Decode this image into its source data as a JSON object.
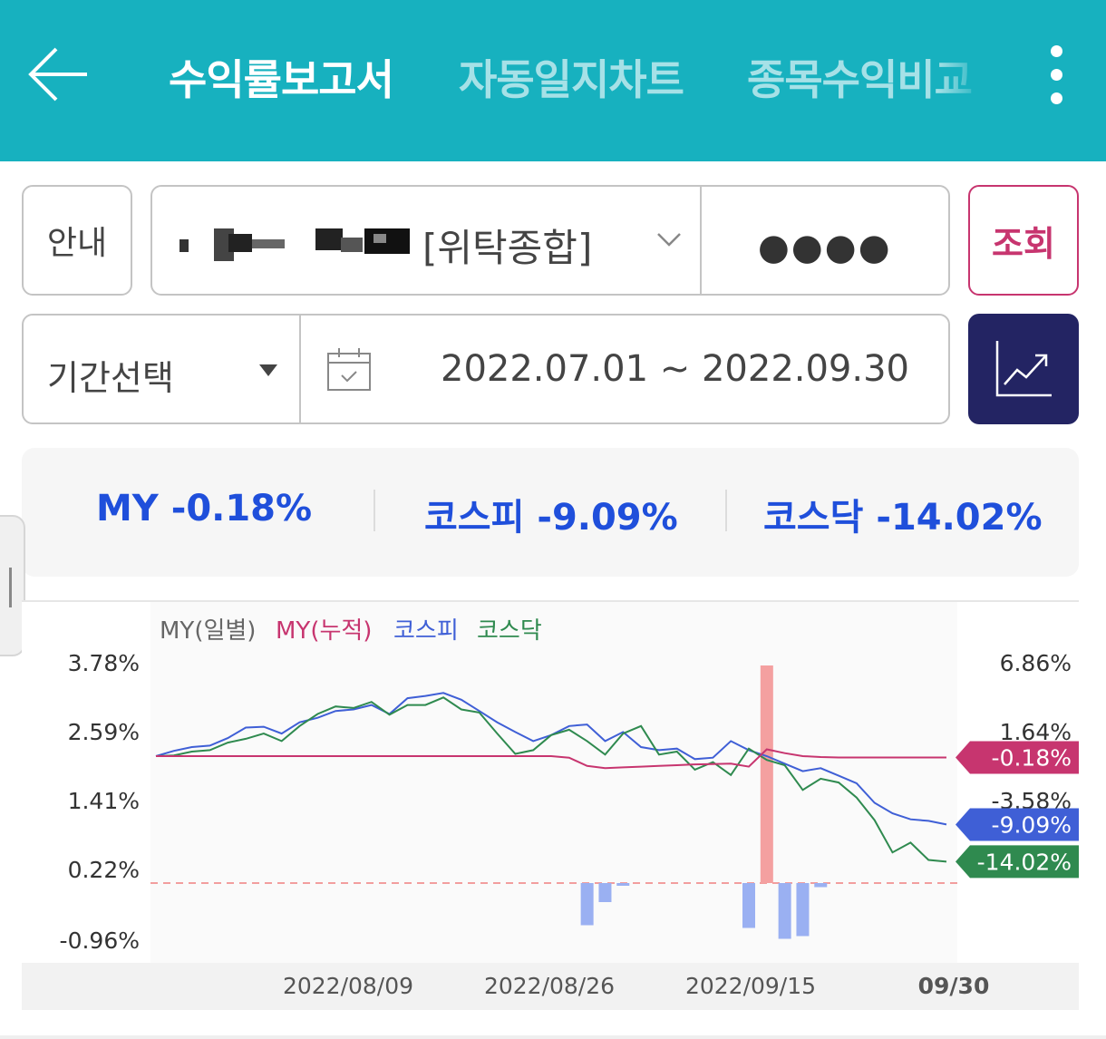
{
  "header": {
    "tabs": [
      {
        "label": "수익률보고서",
        "active": true
      },
      {
        "label": "자동일지차트",
        "active": false
      },
      {
        "label": "종목수익비교",
        "active": false
      }
    ]
  },
  "account": {
    "guide_label": "안내",
    "account_type": "[위탁종합]",
    "password_mask": "●●●●",
    "query_label": "조회"
  },
  "period": {
    "label": "기간선택",
    "range": "2022.07.01 ~ 2022.09.30"
  },
  "summary": [
    {
      "label": "MY",
      "value": "-0.18%"
    },
    {
      "label": "코스피",
      "value": "-9.09%"
    },
    {
      "label": "코스닥",
      "value": "-14.02%"
    }
  ],
  "colors": {
    "header": "#17b1bf",
    "my_daily": "#777777",
    "my_cum": "#c7356f",
    "kospi": "#3f5fd6",
    "kosdaq": "#2f8a4f",
    "summary_text": "#1f4fdb",
    "chart_button": "#232463"
  },
  "chart_data": {
    "type": "line",
    "legend": [
      {
        "name": "MY(일별)",
        "color": "#666666"
      },
      {
        "name": "MY(누적)",
        "color": "#c7356f"
      },
      {
        "name": "코스피",
        "color": "#3f5fd6"
      },
      {
        "name": "코스닥",
        "color": "#2f8a4f"
      }
    ],
    "left_ticks": [
      "3.78%",
      "2.59%",
      "1.41%",
      "0.22%",
      "-0.96%"
    ],
    "right_ticks": [
      "6.86%",
      "1.64%",
      "-3.58%"
    ],
    "x_ticks": [
      "2022/08/09",
      "2022/08/26",
      "2022/09/15",
      "09/30"
    ],
    "end_labels": [
      {
        "series": "MY(누적)",
        "value": "-0.18%",
        "color": "#c7356f"
      },
      {
        "series": "코스피",
        "value": "-9.09%",
        "color": "#3f5fd6"
      },
      {
        "series": "코스닥",
        "value": "-14.02%",
        "color": "#2f8a4f"
      }
    ],
    "series": [
      {
        "name": "코스피",
        "values": [
          0.0,
          0.7,
          1.2,
          1.4,
          2.4,
          3.8,
          3.9,
          3.0,
          4.5,
          5.1,
          6.0,
          6.2,
          6.8,
          5.6,
          7.7,
          8.0,
          8.4,
          7.5,
          6.0,
          4.5,
          3.2,
          2.0,
          2.8,
          4.0,
          4.2,
          2.0,
          3.2,
          1.2,
          0.8,
          1.0,
          -0.4,
          -0.2,
          2.0,
          0.8,
          0.0,
          -1.0,
          -2.0,
          -1.6,
          -2.6,
          -3.6,
          -6.2,
          -7.6,
          -8.4,
          -8.6,
          -9.09
        ]
      },
      {
        "name": "코스닥",
        "values": [
          0.0,
          0.1,
          0.6,
          0.8,
          1.8,
          2.3,
          3.0,
          2.0,
          4.0,
          5.6,
          6.6,
          6.4,
          7.2,
          5.5,
          6.8,
          6.8,
          7.8,
          6.2,
          5.8,
          3.0,
          0.3,
          0.8,
          2.8,
          3.5,
          2.0,
          0.2,
          3.0,
          4.0,
          0.2,
          0.6,
          -1.8,
          -0.8,
          -2.5,
          1.0,
          -0.5,
          -1.2,
          -4.5,
          -3.0,
          -3.5,
          -5.5,
          -8.5,
          -12.8,
          -11.5,
          -13.8,
          -14.02
        ]
      },
      {
        "name": "MY(누적)",
        "values": [
          0.0,
          0.0,
          0.0,
          0.0,
          0.0,
          0.0,
          0.0,
          0.0,
          0.0,
          0.0,
          0.0,
          0.0,
          0.0,
          0.0,
          0.0,
          0.0,
          0.0,
          0.0,
          0.0,
          0.0,
          0.0,
          0.0,
          0.0,
          -0.2,
          -1.3,
          -1.6,
          -1.5,
          -1.4,
          -1.3,
          -1.2,
          -1.1,
          -1.05,
          -1.0,
          -1.4,
          0.9,
          0.4,
          0.0,
          -0.12,
          -0.18,
          -0.18,
          -0.18,
          -0.18,
          -0.18,
          -0.18,
          -0.18
        ]
      }
    ],
    "daily_bars": [
      {
        "date_index": 24,
        "value": -0.62
      },
      {
        "date_index": 25,
        "value": -0.28
      },
      {
        "date_index": 26,
        "value": -0.04
      },
      {
        "date_index": 33,
        "value": -0.66
      },
      {
        "date_index": 34,
        "value": 3.2
      },
      {
        "date_index": 35,
        "value": -0.82
      },
      {
        "date_index": 36,
        "value": -0.78
      },
      {
        "date_index": 37,
        "value": -0.06
      }
    ]
  }
}
